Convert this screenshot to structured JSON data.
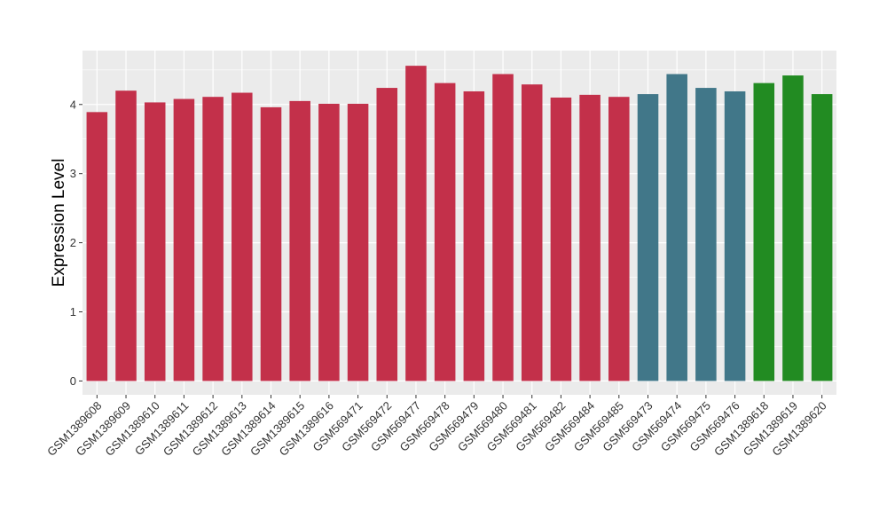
{
  "chart_data": {
    "type": "bar",
    "title": "",
    "xlabel": "",
    "ylabel": "Expression Level",
    "ylim": [
      -0.2,
      4.78
    ],
    "yticks": [
      0,
      1,
      2,
      3,
      4
    ],
    "grid": true,
    "legend": "none",
    "colors": {
      "group1": "#C3304A",
      "group2": "#417789",
      "group3": "#228B22",
      "panel": "#EBEBEB",
      "gridline": "#FFFFFF",
      "text": "#333333"
    },
    "categories": [
      "GSM1389608",
      "GSM1389609",
      "GSM1389610",
      "GSM1389611",
      "GSM1389612",
      "GSM1389613",
      "GSM1389614",
      "GSM1389615",
      "GSM1389616",
      "GSM569471",
      "GSM569472",
      "GSM569477",
      "GSM569478",
      "GSM569479",
      "GSM569480",
      "GSM569481",
      "GSM569482",
      "GSM569484",
      "GSM569485",
      "GSM569473",
      "GSM569474",
      "GSM569475",
      "GSM569476",
      "GSM1389618",
      "GSM1389619",
      "GSM1389620"
    ],
    "values": [
      3.89,
      4.2,
      4.03,
      4.08,
      4.11,
      4.17,
      3.96,
      4.05,
      4.01,
      4.01,
      4.24,
      4.56,
      4.31,
      4.19,
      4.44,
      4.29,
      4.1,
      4.14,
      4.11,
      4.15,
      4.44,
      4.24,
      4.19,
      4.31,
      4.42,
      4.15
    ],
    "groups": [
      1,
      1,
      1,
      1,
      1,
      1,
      1,
      1,
      1,
      1,
      1,
      1,
      1,
      1,
      1,
      1,
      1,
      1,
      1,
      2,
      2,
      2,
      2,
      3,
      3,
      3
    ]
  }
}
